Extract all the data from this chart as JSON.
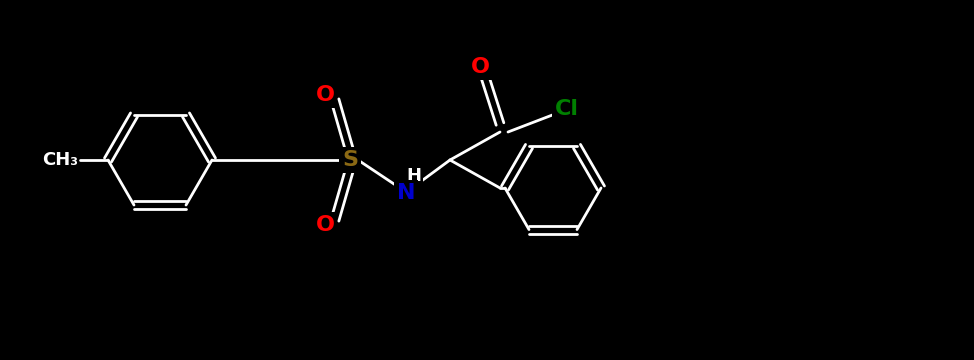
{
  "background": "#000000",
  "bond_color": "#FFFFFF",
  "bond_lw": 2.0,
  "atom_colors": {
    "O": "#FF0000",
    "N": "#0000CD",
    "S": "#8B6914",
    "Cl": "#008000",
    "C": "#FFFFFF"
  },
  "font_size": 14,
  "font_weight": "bold"
}
